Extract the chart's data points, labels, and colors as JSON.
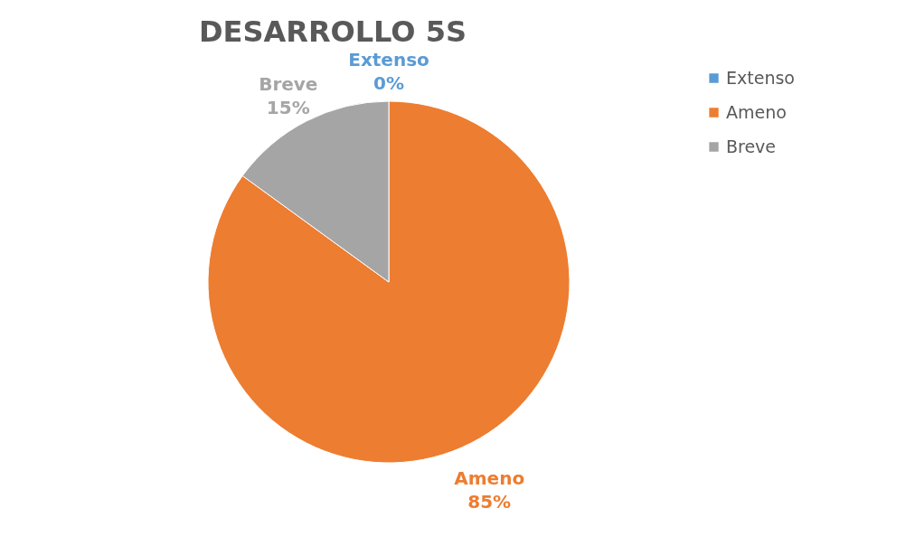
{
  "chart_data": {
    "type": "pie",
    "title": "DESARROLLO 5S",
    "categories": [
      "Extenso",
      "Ameno",
      "Breve"
    ],
    "values": [
      0,
      85,
      15
    ],
    "value_labels": [
      "0%",
      "85%",
      "15%"
    ],
    "colors": [
      "#5b9bd5",
      "#ed7d31",
      "#a5a5a5"
    ],
    "legend": "right"
  }
}
